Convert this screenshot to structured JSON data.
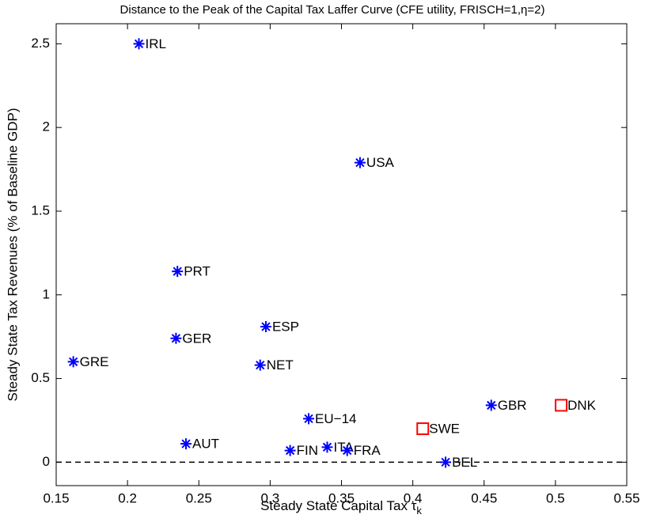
{
  "chart_data": {
    "type": "scatter",
    "title": "Distance to the Peak of the Capital Tax Laffer Curve (CFE utility, FRISCH=1,η=2)",
    "xlabel": "Steady State Capital Tax τ",
    "xlabel_subscript": "k",
    "ylabel": "Steady State Tax Revenues (% of Baseline GDP)",
    "xlim": [
      0.15,
      0.55
    ],
    "xticks": [
      0.15,
      0.2,
      0.25,
      0.3,
      0.35,
      0.4,
      0.45,
      0.5,
      0.55
    ],
    "ylim": [
      -0.14,
      2.62
    ],
    "yticks": [
      0,
      0.5,
      1,
      1.5,
      2,
      2.5
    ],
    "reference_line": 0,
    "series": [
      {
        "marker": "asterisk",
        "color": "#0000ff",
        "labels": [
          "IRL",
          "USA",
          "PRT",
          "ESP",
          "GER",
          "NET",
          "GRE",
          "EU−14",
          "AUT",
          "FIN",
          "ITA",
          "FRA",
          "BEL",
          "GBR"
        ],
        "x": [
          0.208,
          0.363,
          0.235,
          0.297,
          0.234,
          0.293,
          0.162,
          0.327,
          0.241,
          0.314,
          0.34,
          0.354,
          0.423,
          0.455
        ],
        "values": [
          2.5,
          1.79,
          1.14,
          0.81,
          0.74,
          0.58,
          0.6,
          0.26,
          0.11,
          0.07,
          0.09,
          0.07,
          0.0,
          0.34
        ]
      },
      {
        "marker": "square",
        "color": "#ff0000",
        "labels": [
          "SWE",
          "DNK"
        ],
        "x": [
          0.407,
          0.504
        ],
        "values": [
          0.2,
          0.34
        ]
      }
    ]
  }
}
